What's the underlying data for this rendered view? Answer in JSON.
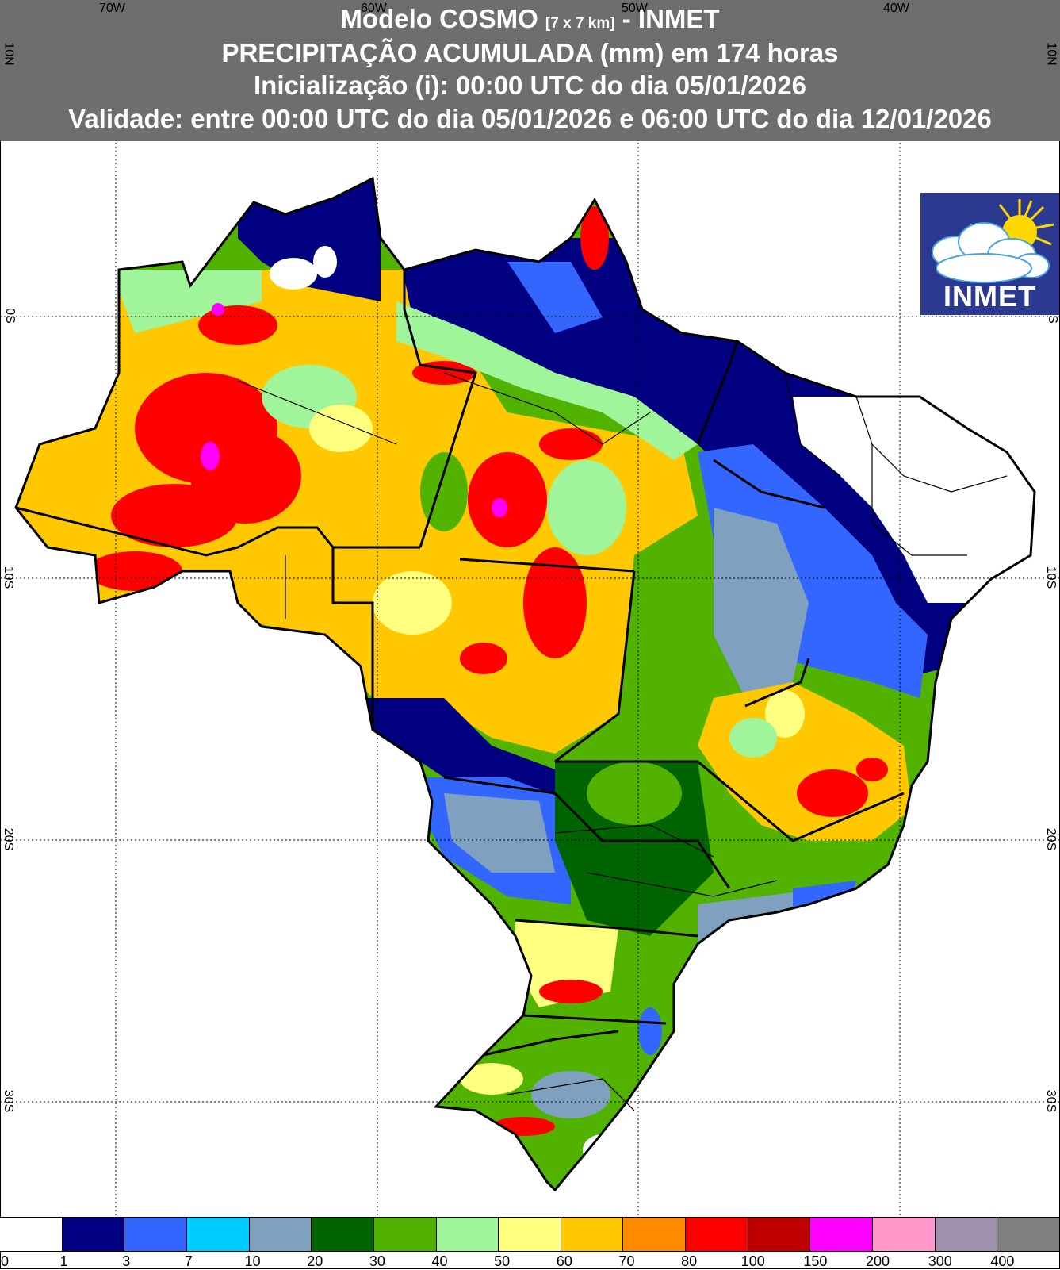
{
  "header": {
    "line1_prefix": "Modelo COSMO",
    "line1_small": "[7 x 7 km]",
    "line1_suffix": "- INMET",
    "line2": "PRECIPITAÇÃO ACUMULADA (mm) em 174 horas",
    "line3": "Inicialização (i): 00:00 UTC do dia 05/01/2026",
    "line4": "Validade: entre 00:00 UTC do dia 05/01/2026 e 06:00 UTC do dia 12/01/2026"
  },
  "grid": {
    "longitude_labels": [
      "70W",
      "60W",
      "50W",
      "40W"
    ],
    "latitude_labels": [
      "10N",
      "0S",
      "10S",
      "20S",
      "30S"
    ]
  },
  "logo": {
    "text": "INMET"
  },
  "legend": {
    "colors": [
      "#ffffff",
      "#000080",
      "#3366ff",
      "#00ccff",
      "#7fa1bf",
      "#006400",
      "#52b200",
      "#a0f59b",
      "#ffff7f",
      "#ffc800",
      "#ff8c00",
      "#ff0000",
      "#c00000",
      "#ff00ff",
      "#ff99cc",
      "#a090b0",
      "#808080"
    ],
    "ticks": [
      "0",
      "1",
      "3",
      "7",
      "10",
      "20",
      "30",
      "40",
      "50",
      "60",
      "70",
      "80",
      "100",
      "150",
      "200",
      "300",
      "400"
    ]
  },
  "map_colors": {
    "dry": "#000080",
    "wet_high": "#ff0000",
    "moderate": "#ffc800",
    "low_moderate": "#52b200",
    "lighter": "#a0f59b",
    "medium_low": "#3366ff"
  }
}
